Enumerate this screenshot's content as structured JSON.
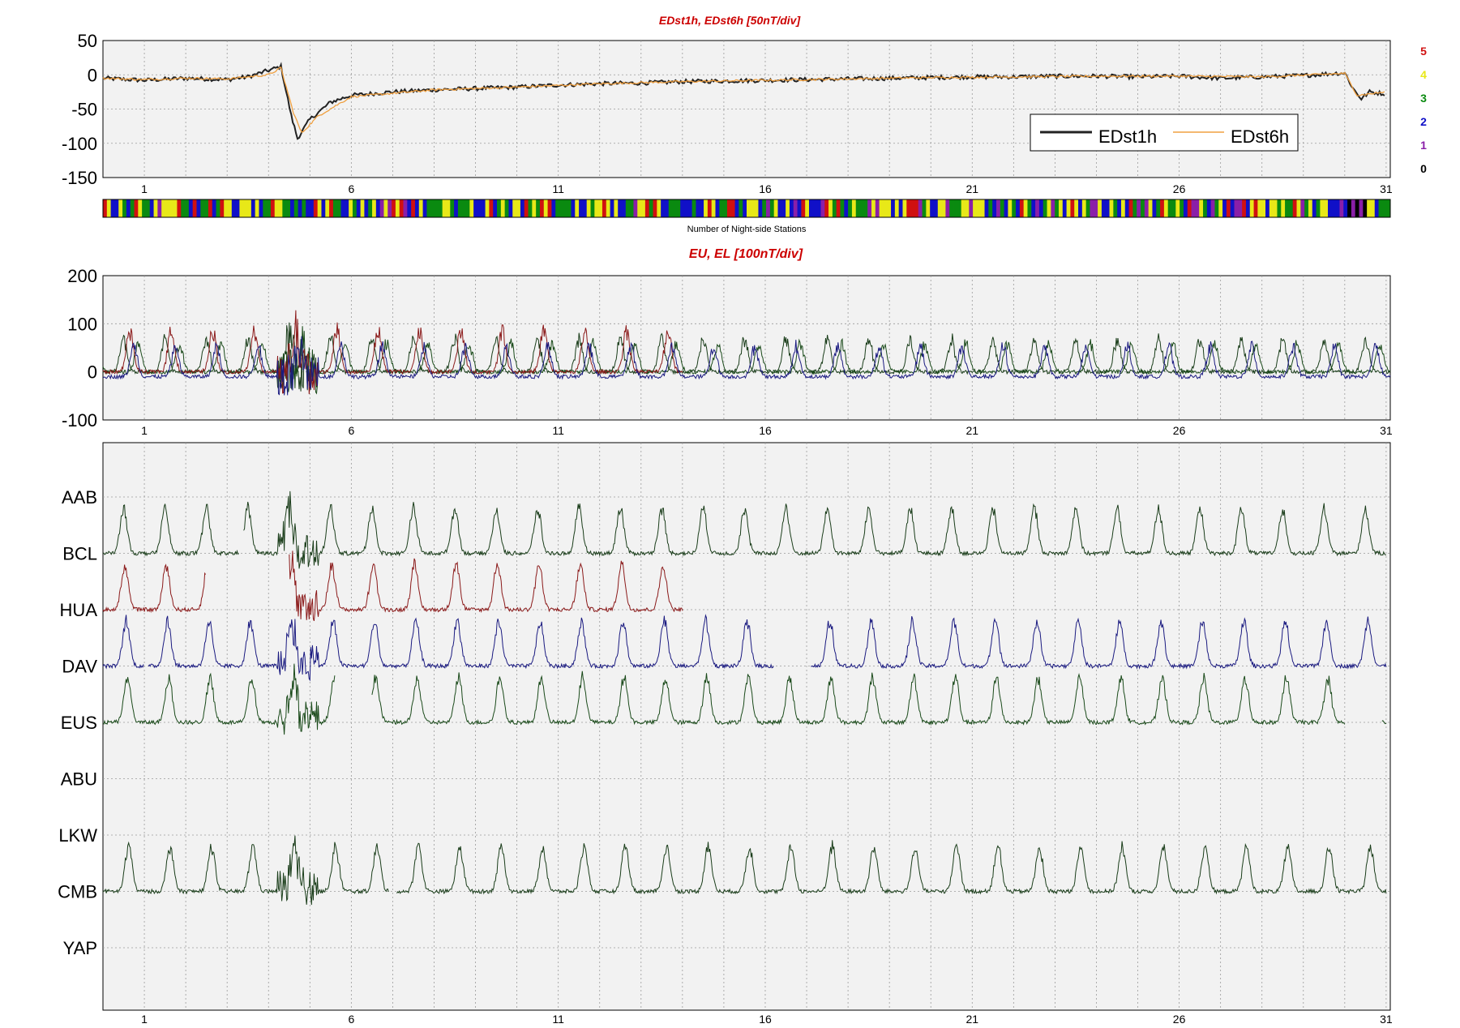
{
  "chart_data": [
    {
      "type": "line",
      "title": "EDst1h, EDst6h [50nT/div]",
      "ylim": [
        -150,
        50
      ],
      "yticks": [
        50,
        0,
        -50,
        -100,
        -150
      ],
      "xlim": [
        0,
        31.1
      ],
      "xticks": [
        1,
        6,
        11,
        16,
        21,
        26,
        31
      ],
      "grid": true,
      "legend": {
        "placement": "lower-right",
        "entries": [
          "EDst1h",
          "EDst6h"
        ]
      },
      "series": [
        {
          "name": "EDst1h",
          "color": "#222222",
          "points": [
            [
              0,
              -5
            ],
            [
              1,
              -8
            ],
            [
              2,
              -5
            ],
            [
              3,
              -7
            ],
            [
              3.5,
              -3
            ],
            [
              4.3,
              12
            ],
            [
              4.55,
              -60
            ],
            [
              4.7,
              -93
            ],
            [
              5,
              -65
            ],
            [
              5.5,
              -40
            ],
            [
              6,
              -30
            ],
            [
              7,
              -25
            ],
            [
              8,
              -22
            ],
            [
              9,
              -20
            ],
            [
              10,
              -18
            ],
            [
              11,
              -15
            ],
            [
              12,
              -13
            ],
            [
              13,
              -12
            ],
            [
              14,
              -10
            ],
            [
              15,
              -9
            ],
            [
              16,
              -8
            ],
            [
              17,
              -7
            ],
            [
              18,
              -6
            ],
            [
              19,
              -5
            ],
            [
              20,
              -4
            ],
            [
              21,
              -3
            ],
            [
              22,
              -3
            ],
            [
              23,
              -2
            ],
            [
              24,
              -2
            ],
            [
              25,
              -3
            ],
            [
              26,
              -2
            ],
            [
              27,
              -5
            ],
            [
              28,
              -3
            ],
            [
              29,
              -1
            ],
            [
              30,
              3
            ],
            [
              30.2,
              -20
            ],
            [
              30.4,
              -35
            ],
            [
              30.6,
              -25
            ],
            [
              31,
              -28
            ]
          ]
        },
        {
          "name": "EDst6h",
          "color": "#f0a040",
          "points": [
            [
              0,
              -5
            ],
            [
              1,
              -7
            ],
            [
              2,
              -5
            ],
            [
              3,
              -6
            ],
            [
              4,
              0
            ],
            [
              4.3,
              10
            ],
            [
              4.6,
              -55
            ],
            [
              4.8,
              -85
            ],
            [
              5.2,
              -60
            ],
            [
              6,
              -32
            ],
            [
              8,
              -22
            ],
            [
              10,
              -18
            ],
            [
              12,
              -13
            ],
            [
              14,
              -10
            ],
            [
              16,
              -8
            ],
            [
              18,
              -6
            ],
            [
              20,
              -4
            ],
            [
              22,
              -3
            ],
            [
              24,
              -2
            ],
            [
              26,
              -2
            ],
            [
              28,
              -3
            ],
            [
              30,
              2
            ],
            [
              30.3,
              -30
            ],
            [
              31,
              -25
            ]
          ]
        }
      ]
    },
    {
      "type": "heatmap",
      "xlabel": "Number of Night-side Stations",
      "scale": [
        {
          "value": "5",
          "color": "#d01010"
        },
        {
          "value": "4",
          "color": "#e8e818"
        },
        {
          "value": "3",
          "color": "#0a8a10"
        },
        {
          "value": "2",
          "color": "#1010c8"
        },
        {
          "value": "1",
          "color": "#8a1fa8"
        },
        {
          "value": "0",
          "color": "#000000"
        }
      ]
    },
    {
      "type": "line",
      "title": "EU, EL   [100nT/div]",
      "ylim": [
        -100,
        200
      ],
      "yticks": [
        200,
        100,
        0,
        -100
      ],
      "xlim": [
        0,
        31.1
      ],
      "xticks": [
        1,
        6,
        11,
        16,
        21,
        26,
        31
      ],
      "grid": true,
      "series": [
        {
          "color": "#1a3d1a",
          "base": 0,
          "peak": 70,
          "phase": 0.0
        },
        {
          "color": "#1a4a1a",
          "base": 0,
          "peak": 60,
          "phase": 0.35
        },
        {
          "color": "#8b1a1a",
          "base": 0,
          "peak": 90,
          "phase": 0.15,
          "xrange": [
            0,
            14
          ]
        },
        {
          "color": "#1a1a80",
          "base": -10,
          "peak": 65,
          "phase": 0.25
        }
      ]
    },
    {
      "type": "line",
      "stations": [
        "AAB",
        "BCL",
        "HUA",
        "DAV",
        "EUS",
        "ABU",
        "LKW",
        "CMB",
        "YAP"
      ],
      "xticks": [
        1,
        6,
        11,
        16,
        21,
        26,
        31
      ],
      "xlim": [
        0,
        31.1
      ],
      "grid": true,
      "traces": [
        {
          "color": "#1a3d1a",
          "base_station": "BCL",
          "segments": [
            [
              0,
              3.3
            ],
            [
              3.4,
              31
            ]
          ]
        },
        {
          "color": "#8b1a1a",
          "base_station": "HUA",
          "segments": [
            [
              0,
              2.5
            ],
            [
              4.5,
              14
            ]
          ]
        },
        {
          "color": "#1a1a80",
          "base_station": "DAV",
          "segments": [
            [
              0,
              1
            ],
            [
              1.1,
              16.2
            ],
            [
              17.1,
              31
            ]
          ]
        },
        {
          "color": "#1a4a1a",
          "base_station": "EUS",
          "segments": [
            [
              0,
              5.6
            ],
            [
              6.5,
              30
            ],
            [
              30.9,
              31
            ]
          ]
        },
        {
          "color": "#1a3d1a",
          "base_station": "CMB",
          "segments": [
            [
              0,
              6.9
            ],
            [
              7.1,
              31
            ]
          ]
        }
      ]
    }
  ]
}
